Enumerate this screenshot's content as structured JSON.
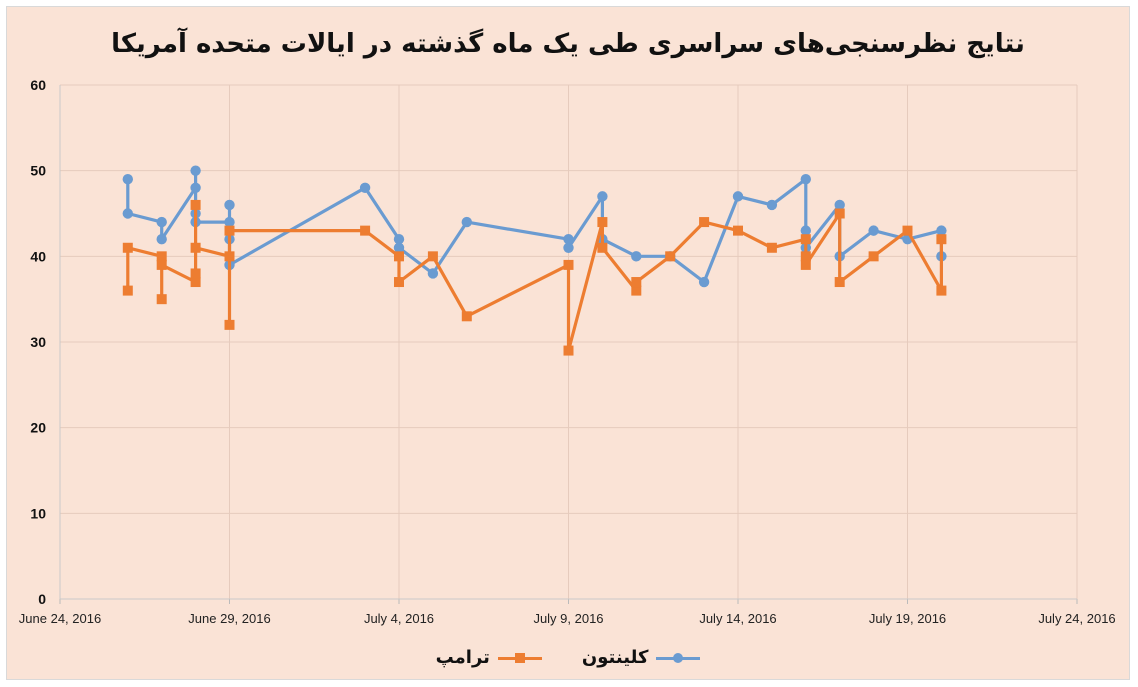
{
  "chart_data": {
    "type": "line",
    "title": "نتایج نظرسنجی‌های سراسری طی یک ماه گذشته در ایالات متحده آمریکا",
    "xlabel": "",
    "ylabel": "",
    "x_ticks": [
      "June 24, 2016",
      "June 29, 2016",
      "July 4, 2016",
      "July 9, 2016",
      "July 14, 2016",
      "July 19, 2016",
      "July 24, 2016"
    ],
    "x_range": [
      "2016-06-24",
      "2016-07-24"
    ],
    "y_ticks": [
      0,
      10,
      20,
      30,
      40,
      50,
      60
    ],
    "ylim": [
      0,
      60
    ],
    "grid": true,
    "legend_position": "bottom",
    "series": [
      {
        "name": "کلینتون",
        "color": "#6a9bd1",
        "marker": "circle",
        "points": [
          [
            "2016-06-26",
            49
          ],
          [
            "2016-06-26",
            45
          ],
          [
            "2016-06-27",
            44
          ],
          [
            "2016-06-27",
            42
          ],
          [
            "2016-06-28",
            48
          ],
          [
            "2016-06-28",
            50
          ],
          [
            "2016-06-28",
            45
          ],
          [
            "2016-06-28",
            44
          ],
          [
            "2016-06-29",
            44
          ],
          [
            "2016-06-29",
            46
          ],
          [
            "2016-06-29",
            42
          ],
          [
            "2016-06-29",
            39
          ],
          [
            "2016-07-03",
            48
          ],
          [
            "2016-07-04",
            42
          ],
          [
            "2016-07-04",
            41
          ],
          [
            "2016-07-05",
            38
          ],
          [
            "2016-07-06",
            44
          ],
          [
            "2016-07-09",
            42
          ],
          [
            "2016-07-09",
            41
          ],
          [
            "2016-07-10",
            47
          ],
          [
            "2016-07-10",
            42
          ],
          [
            "2016-07-11",
            40
          ],
          [
            "2016-07-12",
            40
          ],
          [
            "2016-07-13",
            37
          ],
          [
            "2016-07-14",
            47
          ],
          [
            "2016-07-15",
            46
          ],
          [
            "2016-07-16",
            49
          ],
          [
            "2016-07-16",
            43
          ],
          [
            "2016-07-16",
            41
          ],
          [
            "2016-07-17",
            46
          ],
          [
            "2016-07-17",
            40
          ],
          [
            "2016-07-18",
            43
          ],
          [
            "2016-07-19",
            42
          ],
          [
            "2016-07-20",
            43
          ],
          [
            "2016-07-20",
            40
          ]
        ]
      },
      {
        "name": "ترامپ",
        "color": "#ed7d31",
        "marker": "square",
        "points": [
          [
            "2016-06-26",
            36
          ],
          [
            "2016-06-26",
            41
          ],
          [
            "2016-06-27",
            40
          ],
          [
            "2016-06-27",
            35
          ],
          [
            "2016-06-27",
            39
          ],
          [
            "2016-06-28",
            37
          ],
          [
            "2016-06-28",
            38
          ],
          [
            "2016-06-28",
            46
          ],
          [
            "2016-06-28",
            41
          ],
          [
            "2016-06-29",
            40
          ],
          [
            "2016-06-29",
            32
          ],
          [
            "2016-06-29",
            43
          ],
          [
            "2016-07-03",
            43
          ],
          [
            "2016-07-04",
            40
          ],
          [
            "2016-07-04",
            37
          ],
          [
            "2016-07-05",
            40
          ],
          [
            "2016-07-06",
            33
          ],
          [
            "2016-07-09",
            39
          ],
          [
            "2016-07-09",
            29
          ],
          [
            "2016-07-10",
            44
          ],
          [
            "2016-07-10",
            41
          ],
          [
            "2016-07-11",
            36
          ],
          [
            "2016-07-11",
            37
          ],
          [
            "2016-07-12",
            40
          ],
          [
            "2016-07-13",
            44
          ],
          [
            "2016-07-14",
            43
          ],
          [
            "2016-07-15",
            41
          ],
          [
            "2016-07-16",
            42
          ],
          [
            "2016-07-16",
            40
          ],
          [
            "2016-07-16",
            39
          ],
          [
            "2016-07-17",
            45
          ],
          [
            "2016-07-17",
            37
          ],
          [
            "2016-07-18",
            40
          ],
          [
            "2016-07-19",
            43
          ],
          [
            "2016-07-20",
            36
          ],
          [
            "2016-07-20",
            42
          ]
        ]
      }
    ]
  }
}
